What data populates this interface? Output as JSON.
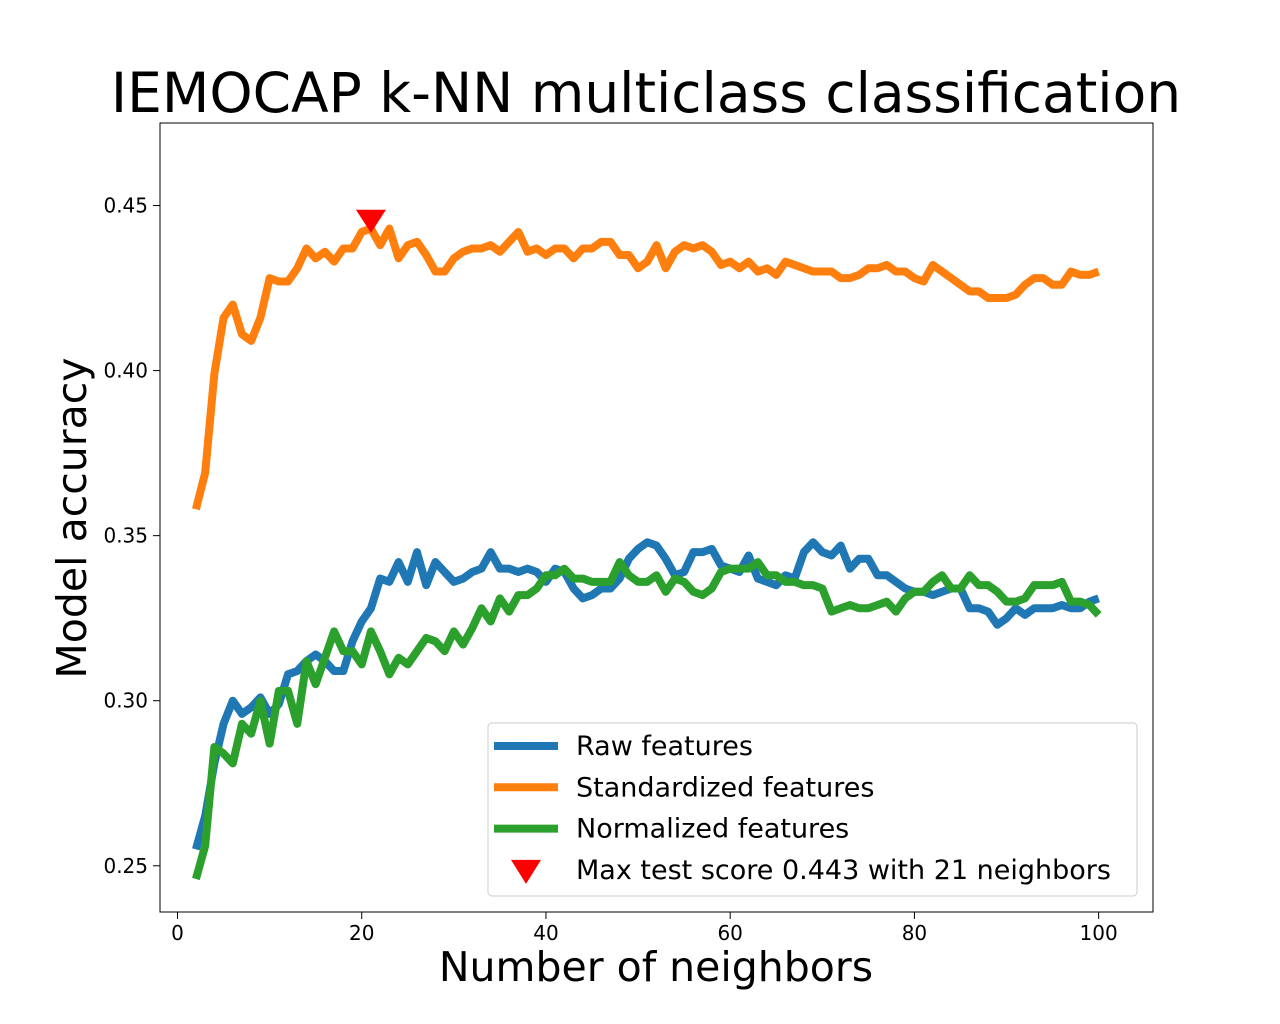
{
  "chart_data": {
    "type": "line",
    "title": "IEMOCAP k-NN multiclass classification",
    "xlabel": "Number of neighbors",
    "ylabel": "Model accuracy",
    "xlim": [
      -1.9,
      105.9
    ],
    "ylim": [
      0.236,
      0.475
    ],
    "xticks": [
      0,
      20,
      40,
      60,
      80,
      100
    ],
    "xtick_labels": [
      "0",
      "20",
      "40",
      "60",
      "80",
      "100"
    ],
    "yticks": [
      0.25,
      0.3,
      0.35,
      0.4,
      0.45
    ],
    "ytick_labels": [
      "0.25",
      "0.30",
      "0.35",
      "0.40",
      "0.45"
    ],
    "grid": false,
    "legend_position": "lower-right",
    "series": [
      {
        "name": "Raw features",
        "color": "#1f77b4",
        "points": [
          [
            2,
            0.255
          ],
          [
            3,
            0.265
          ],
          [
            4,
            0.281
          ],
          [
            5,
            0.293
          ],
          [
            6,
            0.3
          ],
          [
            7,
            0.296
          ],
          [
            8,
            0.298
          ],
          [
            9,
            0.301
          ],
          [
            10,
            0.296
          ],
          [
            11,
            0.299
          ],
          [
            12,
            0.308
          ],
          [
            13,
            0.309
          ],
          [
            14,
            0.312
          ],
          [
            15,
            0.314
          ],
          [
            16,
            0.312
          ],
          [
            17,
            0.309
          ],
          [
            18,
            0.309
          ],
          [
            19,
            0.318
          ],
          [
            20,
            0.324
          ],
          [
            21,
            0.328
          ],
          [
            22,
            0.337
          ],
          [
            23,
            0.336
          ],
          [
            24,
            0.342
          ],
          [
            25,
            0.336
          ],
          [
            26,
            0.345
          ],
          [
            27,
            0.335
          ],
          [
            28,
            0.342
          ],
          [
            29,
            0.339
          ],
          [
            30,
            0.336
          ],
          [
            31,
            0.337
          ],
          [
            32,
            0.339
          ],
          [
            33,
            0.34
          ],
          [
            34,
            0.345
          ],
          [
            35,
            0.34
          ],
          [
            36,
            0.34
          ],
          [
            37,
            0.339
          ],
          [
            38,
            0.34
          ],
          [
            39,
            0.339
          ],
          [
            40,
            0.336
          ],
          [
            41,
            0.34
          ],
          [
            42,
            0.339
          ],
          [
            43,
            0.334
          ],
          [
            44,
            0.331
          ],
          [
            45,
            0.332
          ],
          [
            46,
            0.334
          ],
          [
            47,
            0.334
          ],
          [
            48,
            0.337
          ],
          [
            49,
            0.343
          ],
          [
            50,
            0.346
          ],
          [
            51,
            0.348
          ],
          [
            52,
            0.347
          ],
          [
            53,
            0.343
          ],
          [
            54,
            0.338
          ],
          [
            55,
            0.339
          ],
          [
            56,
            0.345
          ],
          [
            57,
            0.345
          ],
          [
            58,
            0.346
          ],
          [
            59,
            0.341
          ],
          [
            60,
            0.34
          ],
          [
            61,
            0.339
          ],
          [
            62,
            0.344
          ],
          [
            63,
            0.337
          ],
          [
            64,
            0.336
          ],
          [
            65,
            0.335
          ],
          [
            66,
            0.338
          ],
          [
            67,
            0.337
          ],
          [
            68,
            0.345
          ],
          [
            69,
            0.348
          ],
          [
            70,
            0.345
          ],
          [
            71,
            0.344
          ],
          [
            72,
            0.347
          ],
          [
            73,
            0.34
          ],
          [
            74,
            0.343
          ],
          [
            75,
            0.343
          ],
          [
            76,
            0.338
          ],
          [
            77,
            0.338
          ],
          [
            78,
            0.336
          ],
          [
            79,
            0.334
          ],
          [
            80,
            0.333
          ],
          [
            81,
            0.333
          ],
          [
            82,
            0.332
          ],
          [
            83,
            0.333
          ],
          [
            84,
            0.334
          ],
          [
            85,
            0.334
          ],
          [
            86,
            0.328
          ],
          [
            87,
            0.328
          ],
          [
            88,
            0.327
          ],
          [
            89,
            0.323
          ],
          [
            90,
            0.325
          ],
          [
            91,
            0.328
          ],
          [
            92,
            0.326
          ],
          [
            93,
            0.328
          ],
          [
            94,
            0.328
          ],
          [
            95,
            0.328
          ],
          [
            96,
            0.329
          ],
          [
            97,
            0.328
          ],
          [
            98,
            0.328
          ],
          [
            99,
            0.33
          ],
          [
            100,
            0.331
          ]
        ]
      },
      {
        "name": "Standardized features",
        "color": "#ff7f0e",
        "points": [
          [
            2,
            0.358
          ],
          [
            3,
            0.369
          ],
          [
            4,
            0.399
          ],
          [
            5,
            0.416
          ],
          [
            6,
            0.42
          ],
          [
            7,
            0.411
          ],
          [
            8,
            0.409
          ],
          [
            9,
            0.416
          ],
          [
            10,
            0.428
          ],
          [
            11,
            0.427
          ],
          [
            12,
            0.427
          ],
          [
            13,
            0.431
          ],
          [
            14,
            0.437
          ],
          [
            15,
            0.434
          ],
          [
            16,
            0.436
          ],
          [
            17,
            0.433
          ],
          [
            18,
            0.437
          ],
          [
            19,
            0.437
          ],
          [
            20,
            0.442
          ],
          [
            21,
            0.443
          ],
          [
            22,
            0.438
          ],
          [
            23,
            0.443
          ],
          [
            24,
            0.434
          ],
          [
            25,
            0.438
          ],
          [
            26,
            0.439
          ],
          [
            27,
            0.435
          ],
          [
            28,
            0.43
          ],
          [
            29,
            0.43
          ],
          [
            30,
            0.434
          ],
          [
            31,
            0.436
          ],
          [
            32,
            0.437
          ],
          [
            33,
            0.437
          ],
          [
            34,
            0.438
          ],
          [
            35,
            0.436
          ],
          [
            36,
            0.439
          ],
          [
            37,
            0.442
          ],
          [
            38,
            0.436
          ],
          [
            39,
            0.437
          ],
          [
            40,
            0.435
          ],
          [
            41,
            0.437
          ],
          [
            42,
            0.437
          ],
          [
            43,
            0.434
          ],
          [
            44,
            0.437
          ],
          [
            45,
            0.437
          ],
          [
            46,
            0.439
          ],
          [
            47,
            0.439
          ],
          [
            48,
            0.435
          ],
          [
            49,
            0.435
          ],
          [
            50,
            0.431
          ],
          [
            51,
            0.433
          ],
          [
            52,
            0.438
          ],
          [
            53,
            0.431
          ],
          [
            54,
            0.436
          ],
          [
            55,
            0.438
          ],
          [
            56,
            0.437
          ],
          [
            57,
            0.438
          ],
          [
            58,
            0.436
          ],
          [
            59,
            0.432
          ],
          [
            60,
            0.433
          ],
          [
            61,
            0.431
          ],
          [
            62,
            0.433
          ],
          [
            63,
            0.43
          ],
          [
            64,
            0.431
          ],
          [
            65,
            0.429
          ],
          [
            66,
            0.433
          ],
          [
            67,
            0.432
          ],
          [
            68,
            0.431
          ],
          [
            69,
            0.43
          ],
          [
            70,
            0.43
          ],
          [
            71,
            0.43
          ],
          [
            72,
            0.428
          ],
          [
            73,
            0.428
          ],
          [
            74,
            0.429
          ],
          [
            75,
            0.431
          ],
          [
            76,
            0.431
          ],
          [
            77,
            0.432
          ],
          [
            78,
            0.43
          ],
          [
            79,
            0.43
          ],
          [
            80,
            0.428
          ],
          [
            81,
            0.427
          ],
          [
            82,
            0.432
          ],
          [
            83,
            0.43
          ],
          [
            84,
            0.428
          ],
          [
            85,
            0.426
          ],
          [
            86,
            0.424
          ],
          [
            87,
            0.424
          ],
          [
            88,
            0.422
          ],
          [
            89,
            0.422
          ],
          [
            90,
            0.422
          ],
          [
            91,
            0.423
          ],
          [
            92,
            0.426
          ],
          [
            93,
            0.428
          ],
          [
            94,
            0.428
          ],
          [
            95,
            0.426
          ],
          [
            96,
            0.426
          ],
          [
            97,
            0.43
          ],
          [
            98,
            0.429
          ],
          [
            99,
            0.429
          ],
          [
            100,
            0.43
          ]
        ]
      },
      {
        "name": "Normalized features",
        "color": "#2ca02c",
        "points": [
          [
            2,
            0.246
          ],
          [
            3,
            0.256
          ],
          [
            4,
            0.286
          ],
          [
            5,
            0.284
          ],
          [
            6,
            0.281
          ],
          [
            7,
            0.293
          ],
          [
            8,
            0.29
          ],
          [
            9,
            0.3
          ],
          [
            10,
            0.287
          ],
          [
            11,
            0.303
          ],
          [
            12,
            0.303
          ],
          [
            13,
            0.293
          ],
          [
            14,
            0.312
          ],
          [
            15,
            0.305
          ],
          [
            16,
            0.313
          ],
          [
            17,
            0.321
          ],
          [
            18,
            0.315
          ],
          [
            19,
            0.315
          ],
          [
            20,
            0.311
          ],
          [
            21,
            0.321
          ],
          [
            22,
            0.315
          ],
          [
            23,
            0.308
          ],
          [
            24,
            0.313
          ],
          [
            25,
            0.311
          ],
          [
            26,
            0.315
          ],
          [
            27,
            0.319
          ],
          [
            28,
            0.318
          ],
          [
            29,
            0.315
          ],
          [
            30,
            0.321
          ],
          [
            31,
            0.317
          ],
          [
            32,
            0.322
          ],
          [
            33,
            0.328
          ],
          [
            34,
            0.324
          ],
          [
            35,
            0.331
          ],
          [
            36,
            0.327
          ],
          [
            37,
            0.332
          ],
          [
            38,
            0.332
          ],
          [
            39,
            0.334
          ],
          [
            40,
            0.338
          ],
          [
            41,
            0.338
          ],
          [
            42,
            0.34
          ],
          [
            43,
            0.337
          ],
          [
            44,
            0.337
          ],
          [
            45,
            0.336
          ],
          [
            46,
            0.336
          ],
          [
            47,
            0.336
          ],
          [
            48,
            0.342
          ],
          [
            49,
            0.338
          ],
          [
            50,
            0.336
          ],
          [
            51,
            0.336
          ],
          [
            52,
            0.338
          ],
          [
            53,
            0.333
          ],
          [
            54,
            0.337
          ],
          [
            55,
            0.336
          ],
          [
            56,
            0.333
          ],
          [
            57,
            0.332
          ],
          [
            58,
            0.334
          ],
          [
            59,
            0.339
          ],
          [
            60,
            0.34
          ],
          [
            61,
            0.34
          ],
          [
            62,
            0.34
          ],
          [
            63,
            0.342
          ],
          [
            64,
            0.338
          ],
          [
            65,
            0.338
          ],
          [
            66,
            0.336
          ],
          [
            67,
            0.336
          ],
          [
            68,
            0.335
          ],
          [
            69,
            0.335
          ],
          [
            70,
            0.334
          ],
          [
            71,
            0.327
          ],
          [
            72,
            0.328
          ],
          [
            73,
            0.329
          ],
          [
            74,
            0.328
          ],
          [
            75,
            0.328
          ],
          [
            76,
            0.329
          ],
          [
            77,
            0.33
          ],
          [
            78,
            0.327
          ],
          [
            79,
            0.331
          ],
          [
            80,
            0.333
          ],
          [
            81,
            0.333
          ],
          [
            82,
            0.336
          ],
          [
            83,
            0.338
          ],
          [
            84,
            0.334
          ],
          [
            85,
            0.334
          ],
          [
            86,
            0.338
          ],
          [
            87,
            0.335
          ],
          [
            88,
            0.335
          ],
          [
            89,
            0.333
          ],
          [
            90,
            0.33
          ],
          [
            91,
            0.33
          ],
          [
            92,
            0.331
          ],
          [
            93,
            0.335
          ],
          [
            94,
            0.335
          ],
          [
            95,
            0.335
          ],
          [
            96,
            0.336
          ],
          [
            97,
            0.33
          ],
          [
            98,
            0.33
          ],
          [
            99,
            0.329
          ],
          [
            100,
            0.326
          ]
        ]
      }
    ],
    "marker": {
      "name": "Max test score 0.443 with 21 neighbors",
      "x": 21,
      "y": 0.446,
      "shape": "triangle-down",
      "color": "#ff0000"
    }
  }
}
